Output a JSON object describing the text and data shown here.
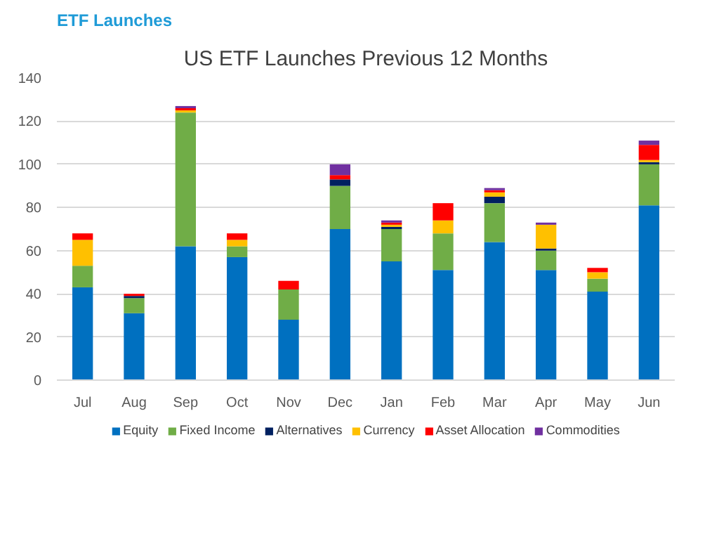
{
  "chart_data": {
    "type": "bar",
    "stacked": true,
    "title": "US ETF Launches Previous 12 Months",
    "subtitle": "ETF Launches",
    "categories": [
      "Jul",
      "Aug",
      "Sep",
      "Oct",
      "Nov",
      "Dec",
      "Jan",
      "Feb",
      "Mar",
      "Apr",
      "May",
      "Jun"
    ],
    "series": [
      {
        "name": "Equity",
        "color": "#0070c0",
        "values": [
          43,
          31,
          62,
          57,
          28,
          70,
          55,
          51,
          64,
          51,
          41,
          81
        ]
      },
      {
        "name": "Fixed Income",
        "color": "#70ad47",
        "values": [
          10,
          7,
          62,
          5,
          14,
          20,
          15,
          17,
          18,
          9,
          6,
          19
        ]
      },
      {
        "name": "Alternatives",
        "color": "#002060",
        "values": [
          0,
          1,
          0,
          0,
          0,
          3,
          1,
          0,
          3,
          1,
          0,
          1
        ]
      },
      {
        "name": "Currency",
        "color": "#ffc000",
        "values": [
          12,
          0,
          1,
          3,
          0,
          0,
          1,
          6,
          2,
          11,
          3,
          1
        ]
      },
      {
        "name": "Asset Allocation",
        "color": "#ff0000",
        "values": [
          3,
          1,
          1,
          3,
          4,
          2,
          1,
          8,
          1,
          0,
          2,
          7
        ]
      },
      {
        "name": "Commodities",
        "color": "#7030a0",
        "values": [
          0,
          0,
          1,
          0,
          0,
          5,
          1,
          0,
          1,
          1,
          0,
          2
        ]
      }
    ],
    "ylim": [
      0,
      140
    ],
    "yticks": [
      0,
      20,
      40,
      60,
      80,
      100,
      120,
      140
    ],
    "grid": "y",
    "legend": "bottom"
  }
}
